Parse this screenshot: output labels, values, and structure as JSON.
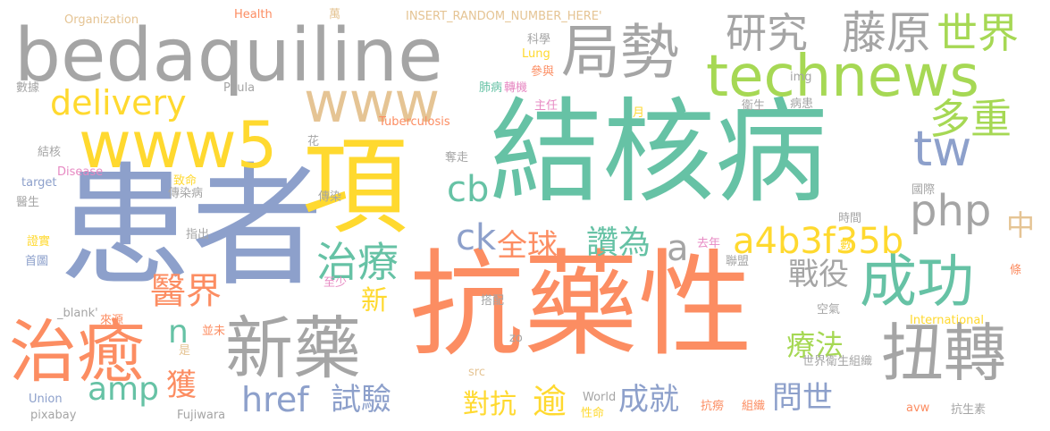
{
  "palette": {
    "gray": "#a5a5a5",
    "teal": "#66c2a5",
    "orange": "#fc8d62",
    "blue": "#8da0cb",
    "pink": "#e78ac3",
    "green": "#a6d854",
    "yellow": "#ffd92f",
    "tan": "#e5c494"
  },
  "words": [
    {
      "text": "bedaquiline",
      "color": "gray"
    },
    {
      "text": "結核病",
      "color": "teal"
    },
    {
      "text": "患者",
      "color": "blue"
    },
    {
      "text": "抗藥性",
      "color": "orange"
    },
    {
      "text": "項",
      "color": "yellow"
    },
    {
      "text": "www5",
      "color": "yellow"
    },
    {
      "text": "www",
      "color": "tan"
    },
    {
      "text": "technews",
      "color": "green"
    },
    {
      "text": "局勢",
      "color": "gray"
    },
    {
      "text": "研究",
      "color": "gray"
    },
    {
      "text": "藤原",
      "color": "gray"
    },
    {
      "text": "世界",
      "color": "green"
    },
    {
      "text": "多重",
      "color": "green"
    },
    {
      "text": "tw",
      "color": "blue"
    },
    {
      "text": "delivery",
      "color": "yellow"
    },
    {
      "text": "php",
      "color": "gray"
    },
    {
      "text": "成功",
      "color": "teal"
    },
    {
      "text": "扭轉",
      "color": "gray"
    },
    {
      "text": "新藥",
      "color": "gray"
    },
    {
      "text": "治癒",
      "color": "orange"
    },
    {
      "text": "治療",
      "color": "teal"
    },
    {
      "text": "a4b3f35b",
      "color": "yellow"
    },
    {
      "text": "全球",
      "color": "orange"
    },
    {
      "text": "讚為",
      "color": "teal"
    },
    {
      "text": "cb",
      "color": "teal"
    },
    {
      "text": "ck",
      "color": "blue"
    },
    {
      "text": "a",
      "color": "gray"
    },
    {
      "text": "戰役",
      "color": "gray"
    },
    {
      "text": "醫界",
      "color": "orange"
    },
    {
      "text": "n",
      "color": "teal"
    },
    {
      "text": "新",
      "color": "yellow"
    },
    {
      "text": "amp",
      "color": "teal"
    },
    {
      "text": "獲",
      "color": "orange"
    },
    {
      "text": "href",
      "color": "blue"
    },
    {
      "text": "試驗",
      "color": "blue"
    },
    {
      "text": "對抗",
      "color": "yellow"
    },
    {
      "text": "逾",
      "color": "yellow"
    },
    {
      "text": "成就",
      "color": "blue"
    },
    {
      "text": "問世",
      "color": "blue"
    },
    {
      "text": "療法",
      "color": "green"
    },
    {
      "text": "中",
      "color": "tan"
    },
    {
      "text": "Organization",
      "color": "tan"
    },
    {
      "text": "Health",
      "color": "orange"
    },
    {
      "text": "INSERT_RANDOM_NUMBER_HERE'",
      "color": "tan"
    },
    {
      "text": "萬",
      "color": "tan"
    },
    {
      "text": "科學",
      "color": "gray"
    },
    {
      "text": "Lung",
      "color": "yellow"
    },
    {
      "text": "參與",
      "color": "orange"
    },
    {
      "text": "img",
      "color": "gray"
    },
    {
      "text": "Paula",
      "color": "gray"
    },
    {
      "text": "數據",
      "color": "gray"
    },
    {
      "text": "肺病",
      "color": "teal"
    },
    {
      "text": "轉機",
      "color": "pink"
    },
    {
      "text": "主任",
      "color": "pink"
    },
    {
      "text": "月",
      "color": "yellow"
    },
    {
      "text": "衛生",
      "color": "gray"
    },
    {
      "text": "病患",
      "color": "gray"
    },
    {
      "text": "Tuberculosis",
      "color": "orange"
    },
    {
      "text": "花",
      "color": "gray"
    },
    {
      "text": "結核",
      "color": "gray"
    },
    {
      "text": "Disease",
      "color": "pink"
    },
    {
      "text": "奪走",
      "color": "gray"
    },
    {
      "text": "target",
      "color": "blue"
    },
    {
      "text": "致命",
      "color": "yellow"
    },
    {
      "text": "傳染病",
      "color": "gray"
    },
    {
      "text": "國際",
      "color": "gray"
    },
    {
      "text": "醫生",
      "color": "gray"
    },
    {
      "text": "傳染",
      "color": "gray"
    },
    {
      "text": "時間",
      "color": "gray"
    },
    {
      "text": "證實",
      "color": "yellow"
    },
    {
      "text": "指出",
      "color": "gray"
    },
    {
      "text": "去年",
      "color": "pink"
    },
    {
      "text": "數",
      "color": "yellow"
    },
    {
      "text": "首圖",
      "color": "blue"
    },
    {
      "text": "聯盟",
      "color": "gray"
    },
    {
      "text": "條",
      "color": "orange"
    },
    {
      "text": "至少",
      "color": "pink"
    },
    {
      "text": "搭配",
      "color": "gray"
    },
    {
      "text": "_blank'",
      "color": "gray"
    },
    {
      "text": "來源",
      "color": "orange"
    },
    {
      "text": "空氣",
      "color": "gray"
    },
    {
      "text": "並未",
      "color": "orange"
    },
    {
      "text": "zo",
      "color": "gray"
    },
    {
      "text": "International",
      "color": "yellow"
    },
    {
      "text": "是",
      "color": "tan"
    },
    {
      "text": "世界衛生組織",
      "color": "gray"
    },
    {
      "text": "src",
      "color": "tan"
    },
    {
      "text": "Union",
      "color": "blue"
    },
    {
      "text": "World",
      "color": "gray"
    },
    {
      "text": "pixabay",
      "color": "gray"
    },
    {
      "text": "Fujiwara",
      "color": "gray"
    },
    {
      "text": "性命",
      "color": "yellow"
    },
    {
      "text": "抗癆",
      "color": "orange"
    },
    {
      "text": "組織",
      "color": "orange"
    },
    {
      "text": "avw",
      "color": "orange"
    },
    {
      "text": "抗生素",
      "color": "gray"
    }
  ]
}
